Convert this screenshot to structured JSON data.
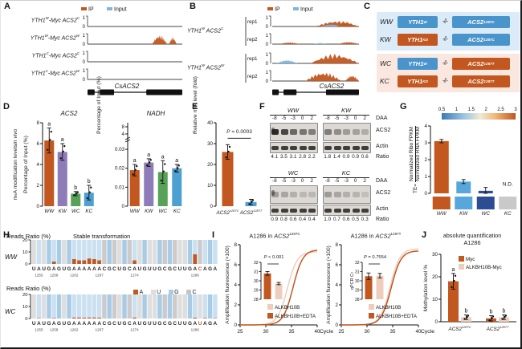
{
  "colors": {
    "ip_orange": "#C2571F",
    "input_blue": "#7EB6DC",
    "purple": "#8E7CB8",
    "green": "#57A257",
    "light_blue_bar": "#4FA0D2",
    "kw_blue": "#56A8DC",
    "wc_dark_blue": "#2C4C94",
    "nd_gray": "#C9C9C9",
    "light_pink": "#EFCDBC",
    "box_blue": "#4A94CC",
    "bg_blue": "#DCEBF8",
    "bg_pink": "#FAE8E0",
    "seq_A": "#CBE0F0",
    "seq_G": "#A8CCE6",
    "seq_U": "#DEDEDE",
    "seq_C": "#CBCBCB"
  },
  "panels": {
    "a": {
      "letter": "A"
    },
    "b": {
      "letter": "B"
    },
    "c": {
      "letter": "C",
      "connector": "-⫽-",
      "rows": [
        {
          "tag": "WW",
          "g1": "YTH1^{W}",
          "g1c": "#4A94CC",
          "g2": "ACS2^{1287C}",
          "g2c": "#4A94CC"
        },
        {
          "tag": "KW",
          "g1": "YTH1^{KD}",
          "g1c": "#C2571F",
          "g2": "ACS2^{1287C}",
          "g2c": "#4A94CC"
        },
        {
          "tag": "WC",
          "g1": "YTH1^{W}",
          "g1c": "#4A94CC",
          "g2": "ACS2^{1287T}",
          "g2c": "#C2571F"
        },
        {
          "tag": "KC",
          "g1": "YTH1^{KD}",
          "g1c": "#C2571F",
          "g2": "ACS2^{1287T}",
          "g2c": "#C2571F"
        }
      ]
    },
    "d": {
      "letter": "D"
    },
    "e": {
      "letter": "E"
    },
    "f": {
      "letter": "F"
    },
    "g": {
      "letter": "G"
    },
    "h": {
      "letter": "H",
      "title": "Stable transformation",
      "ylabel": "Reads Ratio (%)",
      "tracks": [
        "WW",
        "WC"
      ],
      "legend": [
        {
          "base": "A",
          "color": "#C2571F"
        },
        {
          "base": "U",
          "color": "#DEDEDE"
        },
        {
          "base": "G",
          "color": "#A8CCE6"
        },
        {
          "base": "C",
          "color": "#C4C4C4"
        }
      ]
    },
    "i": {
      "letter": "I"
    },
    "j": {
      "letter": "J"
    }
  },
  "chart_data": {
    "a_tracks": {
      "type": "coverageA",
      "legend": {
        "ip": "IP",
        "input": "Input"
      },
      "scale_top": "1",
      "scale_bottom": "0",
      "gene_label": "CsACS2",
      "exons": [
        [
          0,
          0.075
        ],
        [
          0.13,
          0.28
        ],
        [
          0.62,
          1
        ]
      ],
      "tracks": [
        {
          "label": "YTH1^{W}-Myc ACS2^{C}",
          "peaks": []
        },
        {
          "label": "YTH1^{W}-Myc ACS2^{W}",
          "peaks": [
            {
              "c": "ip",
              "x": 0.68,
              "w": 0.16,
              "h": 0.8
            },
            {
              "c": "ip",
              "x": 0.86,
              "w": 0.08,
              "h": 0.62
            }
          ]
        },
        {
          "label": "YTH1^{C}-Myc ACS2^{C}",
          "peaks": []
        },
        {
          "label": "YTH1^{C}-Myc ACS2^{W}",
          "peaks": []
        }
      ]
    },
    "b_tracks": {
      "type": "coverageB",
      "legend": {
        "ip": "IP",
        "input": "Input"
      },
      "scale_top": "1",
      "scale_bottom": "0",
      "gene_label": "CsACS2",
      "exons": [
        [
          0,
          0.075
        ],
        [
          0.13,
          0.28
        ],
        [
          0.62,
          1
        ]
      ],
      "groups": [
        {
          "label": "YTH1^{W} ACS2^{C}",
          "tracks": [
            {
              "rep": "rep1",
              "peaks": [
                {
                  "c": "ip",
                  "x": 0.5,
                  "w": 0.5,
                  "h": 0.5
                },
                {
                  "c": "input",
                  "x": 0.56,
                  "w": 0.26,
                  "h": 0.2
                },
                {
                  "c": "ip",
                  "x": 0.74,
                  "w": 0.22,
                  "h": 0.4
                }
              ]
            },
            {
              "rep": "rep2",
              "peaks": [
                {
                  "c": "ip",
                  "x": 0.08,
                  "w": 0.24,
                  "h": 0.16
                },
                {
                  "c": "input",
                  "x": 0.48,
                  "w": 0.14,
                  "h": 0.12
                },
                {
                  "c": "ip",
                  "x": 0.76,
                  "w": 0.24,
                  "h": 0.2
                }
              ]
            }
          ]
        },
        {
          "label": "YTH1^{W} ACS2^{W}",
          "tracks": [
            {
              "rep": "rep1",
              "peaks": [
                {
                  "c": "input",
                  "x": 0.05,
                  "w": 0.24,
                  "h": 0.32
                },
                {
                  "c": "ip",
                  "x": 0.44,
                  "w": 0.56,
                  "h": 0.82
                }
              ]
            },
            {
              "rep": "rep2",
              "peaks": [
                {
                  "c": "ip",
                  "x": 0.38,
                  "w": 0.42,
                  "h": 0.78
                },
                {
                  "c": "ip",
                  "x": 0.84,
                  "w": 0.16,
                  "h": 0.52
                }
              ]
            }
          ]
        }
      ]
    },
    "d_acs2": {
      "type": "bar",
      "title": "ACS2",
      "ylabel": "m^{6}A modification levels ~{in vivo}",
      "ylabel2": "Percentage of Input (%)",
      "categories": [
        "WW",
        "KW",
        "WC",
        "KC"
      ],
      "values": [
        6.3,
        5.2,
        1.2,
        1.3
      ],
      "errors": [
        1.2,
        0.8,
        0.2,
        0.7
      ],
      "letters": [
        "a",
        "a",
        "b",
        "b"
      ],
      "colors": [
        "#C2571F",
        "#8E7CB8",
        "#57A257",
        "#4FA0D2"
      ],
      "ylim": [
        0,
        8
      ],
      "yticks": [
        0,
        2,
        4,
        6,
        8
      ],
      "cat_italic": true,
      "dots": true
    },
    "d_nadh": {
      "type": "bar",
      "title": "NADH",
      "ylabel": "Percentage of Input (%)",
      "categories": [
        "WW",
        "KW",
        "WC",
        "KC"
      ],
      "values": [
        0.019,
        0.023,
        0.018,
        0.02
      ],
      "errors": [
        0.003,
        0.002,
        0.006,
        0.002
      ],
      "letters": [
        "a",
        "a",
        "a",
        "a"
      ],
      "colors": [
        "#C2571F",
        "#8E7CB8",
        "#57A257",
        "#4FA0D2"
      ],
      "ylim": [
        0,
        0.033
      ],
      "yticks": [
        0,
        0.01,
        0.02,
        0.03
      ],
      "break_ticks": [
        "4",
        "8"
      ],
      "cat_italic": true,
      "dots": true
    },
    "e_m6a": {
      "type": "bar",
      "ylabel": "Relative m^{6}A level (fold)",
      "categories": [
        "ACS2^{1287C}",
        "ACS2^{1287T}"
      ],
      "values": [
        26,
        2
      ],
      "errors": [
        3.5,
        1.3
      ],
      "colors": [
        "#C2571F",
        "#4FA0D2"
      ],
      "ylim": [
        0,
        40
      ],
      "yticks": [
        0,
        10,
        20,
        30,
        40
      ],
      "p_label": "~{P} = 0.0003",
      "cat_italic": true,
      "dots": true
    },
    "f_blots": {
      "type": "blot",
      "row_labels": [
        "DAA",
        "ACS2",
        "Actin",
        "Ratio"
      ],
      "groups": [
        {
          "name": "WW",
          "lanes": [
            "-8",
            "-5",
            "-3",
            "0",
            "2"
          ],
          "acs2": [
            0.95,
            0.8,
            0.62,
            0.55,
            0.5
          ],
          "actin": [
            0.85,
            0.85,
            0.85,
            0.85,
            0.85
          ],
          "ratio": [
            "4.1",
            "3.5",
            "3.1",
            "2.8",
            "2.2"
          ],
          "marker": true
        },
        {
          "name": "KW",
          "lanes": [
            "-8",
            "-5",
            "-3",
            "0",
            "2"
          ],
          "acs2": [
            0.5,
            0.42,
            0.33,
            0.3,
            0.24
          ],
          "actin": [
            0.85,
            0.85,
            0.85,
            0.85,
            0.85
          ],
          "ratio": [
            "1.8",
            "1.4",
            "0.9",
            "0.9",
            "0.6"
          ],
          "marker": false
        },
        {
          "name": "WC",
          "lanes": [
            "-8",
            "-5",
            "-3",
            "0",
            "2"
          ],
          "acs2": [
            0.32,
            0.28,
            0.22,
            0.18,
            0.18
          ],
          "actin": [
            0.85,
            0.85,
            0.85,
            0.85,
            0.85
          ],
          "ratio": [
            "0.9",
            "0.8",
            "0.6",
            "0.4",
            "0.4"
          ],
          "marker": true
        },
        {
          "name": "KC",
          "lanes": [
            "-8",
            "-5",
            "-3",
            "0",
            "2"
          ],
          "acs2": [
            0.34,
            0.28,
            0.22,
            0.2,
            0.14
          ],
          "actin": [
            0.85,
            0.85,
            0.85,
            0.85,
            0.85
          ],
          "ratio": [
            "1.0",
            "0.7",
            "0.6",
            "0.5",
            "0.3"
          ],
          "marker": false
        }
      ]
    },
    "g_te": {
      "type": "bar",
      "ylabel_frac": {
        "prefix": "TE=",
        "num": "Normalized Ribo FPKM",
        "den": "Normalized RNA FPKM"
      },
      "categories": [
        "WW",
        "KW",
        "WC",
        "KC"
      ],
      "values": [
        3.1,
        0.7,
        0.15,
        null
      ],
      "errors": [
        0.1,
        0.12,
        0.2,
        0
      ],
      "nd": "N.D.",
      "colors": [
        "#C2571F",
        "#56A8DC",
        "#2C4C94",
        "#C9C9C9"
      ],
      "ylim": [
        0,
        4
      ],
      "yticks": [
        0,
        1,
        2,
        3,
        4
      ],
      "swatches": true,
      "cat_italic": true,
      "colorbar": {
        "ticks": [
          "0.5",
          "1",
          "1.5",
          "2",
          "2.5",
          "3"
        ]
      }
    },
    "h_ww": {
      "type": "seq",
      "track": "WW",
      "sequence": "UAUGAGUGAAAAAACGCUGCAUGUUGCGCUUGACAGA",
      "highlight": 33,
      "values": [
        0,
        0,
        0,
        0,
        2,
        0,
        0,
        0,
        4,
        3,
        3,
        4.5,
        4,
        3,
        0,
        0,
        0,
        0,
        0,
        0,
        3,
        0,
        0,
        0,
        0,
        0,
        0,
        0,
        0,
        0,
        0,
        0,
        8,
        0,
        0,
        0,
        0
      ],
      "ylim": [
        0,
        20
      ],
      "yticks": [
        0,
        10,
        20
      ],
      "pos_ticks": [
        {
          "i": 1,
          "t": "1255"
        },
        {
          "i": 4,
          "t": "1258"
        },
        {
          "i": 8,
          "t": "1262"
        },
        {
          "i": 13,
          "t": "1267"
        },
        {
          "i": 20,
          "t": "1274"
        },
        {
          "i": 32,
          "t": "1286"
        }
      ]
    },
    "h_wc": {
      "type": "seq",
      "track": "WC",
      "sequence": "UAUGAGUGAAAAAACGCUGCAUGUUGCGCUUGAUAGA",
      "highlight": 33,
      "values": [
        0,
        0.3,
        0,
        0,
        0.4,
        0,
        0,
        0,
        0.8,
        0.8,
        0.7,
        0.8,
        0.8,
        0.7,
        0,
        0,
        0,
        0,
        0,
        0,
        0.8,
        0,
        0,
        0,
        0,
        0,
        0,
        0,
        0,
        0,
        0,
        0,
        0.7,
        0,
        0.4,
        0,
        0.3
      ],
      "ylim": [
        0,
        20
      ],
      "yticks": [
        0,
        10,
        20
      ],
      "pos_ticks": [
        {
          "i": 1,
          "t": "1255"
        },
        {
          "i": 4,
          "t": "1258"
        },
        {
          "i": 8,
          "t": "1262"
        },
        {
          "i": 13,
          "t": "1267"
        },
        {
          "i": 20,
          "t": "1274"
        },
        {
          "i": 32,
          "t": "1286"
        }
      ]
    },
    "i_left": {
      "type": "qpcr",
      "title": "A1286 in ~{ACS2}^{1287C}",
      "ylabel": "Amplification fluorescence (×100)",
      "xlabel": "Cycle",
      "xlim": [
        25,
        40
      ],
      "ylim": [
        0,
        8
      ],
      "xticks": [
        25,
        30,
        35,
        40
      ],
      "yticks": [
        0,
        2,
        4,
        6,
        8
      ],
      "series": [
        {
          "name": "ALKBH10B",
          "color": "#EFCDBC",
          "mid": 34.2,
          "k": 1.05,
          "max": 7.3
        },
        {
          "name": "ALKBH10B+EDTA",
          "color": "#C2571F",
          "mid": 35.3,
          "k": 1.05,
          "max": 7.5
        }
      ],
      "inset": {
        "p_label": "~{P} < 0.001",
        "ylim": [
          28,
          32
        ],
        "yticks": [
          28,
          29,
          30,
          31,
          32
        ],
        "values": [
          30.8,
          29.7
        ],
        "errors": [
          0.2,
          0.12
        ],
        "colors": [
          "#C2571F",
          "#EFCDBC"
        ]
      }
    },
    "i_right": {
      "type": "qpcr",
      "title": "A1286 in ~{ACS2}^{1287T}",
      "ylabel": "Amplification fluorescence (×100)",
      "xlabel": "Cycle",
      "xlim": [
        25,
        40
      ],
      "ylim": [
        0,
        8
      ],
      "xticks": [
        25,
        30,
        35,
        40
      ],
      "yticks": [
        0,
        2,
        4,
        6,
        8
      ],
      "series": [
        {
          "name": "ALKBH10B",
          "color": "#EFCDBC",
          "mid": 34.5,
          "k": 1.05,
          "max": 7.6
        },
        {
          "name": "ALKBH10B+EDTA",
          "color": "#C2571F",
          "mid": 34.7,
          "k": 1.05,
          "max": 7.4
        }
      ],
      "inset": {
        "ylabel": "qPCR C_{T}",
        "p_label": "~{P} = 0.7554",
        "ylim": [
          28,
          32
        ],
        "yticks": [
          28,
          29,
          30,
          31,
          32
        ],
        "values": [
          30.5,
          30.55
        ],
        "errors": [
          0.35,
          0.25
        ],
        "colors": [
          "#C2571F",
          "#EFCDBC"
        ]
      }
    },
    "j_quant": {
      "type": "grouped",
      "title1": "absolute quantification",
      "title2": "A1286",
      "ylabel": "Methylation level %",
      "ylim": [
        0,
        30
      ],
      "yticks": [
        0,
        10,
        20,
        30
      ],
      "categories": [
        "ACS2^{1287C}",
        "ACS2^{1287T}"
      ],
      "series": [
        {
          "name": "Myc",
          "color": "#C2571F",
          "values": [
            18,
            1.5
          ],
          "errors": [
            3.5,
            1.2
          ],
          "letters": [
            "a",
            "b"
          ]
        },
        {
          "name": "ALKBH10B-Myc",
          "color": "#EFCDBC",
          "values": [
            2,
            2
          ],
          "errors": [
            1,
            1
          ],
          "letters": [
            "b",
            "b"
          ]
        }
      ]
    }
  }
}
